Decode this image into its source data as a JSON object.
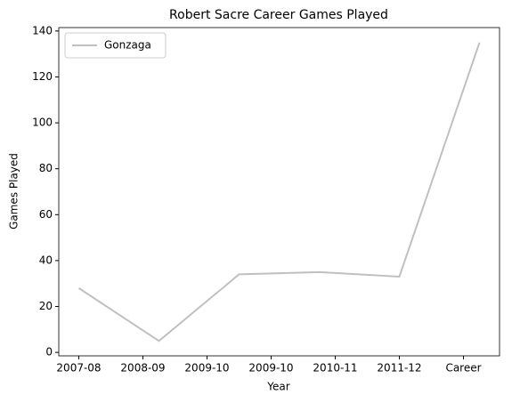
{
  "chart_data": {
    "type": "line",
    "title": "Robert Sacre Career Games Played",
    "xlabel": "Year",
    "ylabel": "Games Played",
    "x": [
      0,
      1,
      2,
      3,
      4,
      5
    ],
    "series": [
      {
        "name": "Gonzaga",
        "color": "#c0c0c0",
        "values": [
          28,
          5,
          34,
          35,
          33,
          135
        ]
      }
    ],
    "xlim": [
      -0.25,
      5.25
    ],
    "xticks": [
      {
        "value": 0,
        "label": "2007-08"
      },
      {
        "value": 0.8,
        "label": "2008-09"
      },
      {
        "value": 1.6,
        "label": "2009-10"
      },
      {
        "value": 2.4,
        "label": "2009-10"
      },
      {
        "value": 3.2,
        "label": "2010-11"
      },
      {
        "value": 4.0,
        "label": "2011-12"
      },
      {
        "value": 4.8,
        "label": "Career"
      }
    ],
    "ylim": [
      -1.5,
      141.5
    ],
    "yticks": [
      0,
      20,
      40,
      60,
      80,
      100,
      120,
      140
    ],
    "legend": "upper left",
    "grid": false
  }
}
